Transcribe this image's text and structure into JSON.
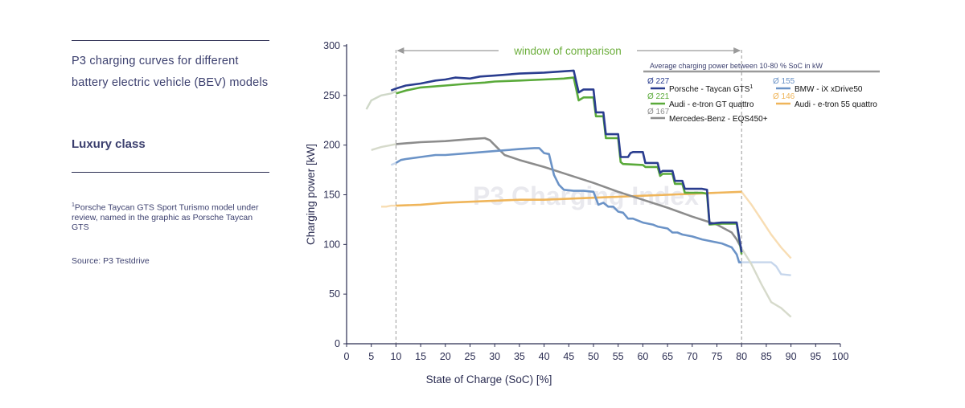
{
  "sidebar": {
    "intro": "P3 charging curves for different battery electric vehicle (BEV) models",
    "class_label": "Luxury class",
    "footnote_mark": "1",
    "footnote": "Porsche Taycan GTS Sport Turismo model under review, named in the graphic as Porsche Taycan GTS",
    "source": "Source: P3 Testdrive"
  },
  "colors": {
    "text": "#3b3f6e",
    "axis": "#2b2d52",
    "window": "#6cae3c",
    "porsche": "#2a3d8f",
    "audi_gt": "#5aaa3a",
    "bmw": "#6b93c7",
    "audi55": "#efb55a",
    "merc": "#8c8c8c"
  },
  "chart_data": {
    "type": "line",
    "xlabel": "State of Charge (SoC) [%]",
    "ylabel": "Charging power [kW]",
    "xlim": [
      0,
      100
    ],
    "ylim": [
      0,
      300
    ],
    "xticks": [
      0,
      5,
      10,
      15,
      20,
      25,
      30,
      35,
      40,
      45,
      50,
      55,
      60,
      65,
      70,
      75,
      80,
      85,
      90,
      95,
      100
    ],
    "yticks": [
      0,
      50,
      100,
      150,
      200,
      250,
      300
    ],
    "window": {
      "label": "window of comparison",
      "from": 10,
      "to": 80
    },
    "watermark": "P3 Charging Index",
    "legend_title": "Average charging power between 10-80 % SoC in kW",
    "series": [
      {
        "name": "Porsche - Taycan GTS",
        "sup": "1",
        "avg": "Ø 227",
        "color_key": "porsche",
        "points": [
          [
            9,
            255
          ],
          [
            10,
            257
          ],
          [
            12,
            260
          ],
          [
            15,
            262
          ],
          [
            18,
            265
          ],
          [
            20,
            266
          ],
          [
            22,
            268
          ],
          [
            25,
            267
          ],
          [
            27,
            269
          ],
          [
            30,
            270
          ],
          [
            35,
            272
          ],
          [
            40,
            273
          ],
          [
            43,
            274
          ],
          [
            46,
            275
          ],
          [
            47,
            253
          ],
          [
            48,
            256
          ],
          [
            50,
            256
          ],
          [
            50.5,
            233
          ],
          [
            51,
            233
          ],
          [
            52,
            233
          ],
          [
            52.5,
            211
          ],
          [
            54,
            211
          ],
          [
            55,
            211
          ],
          [
            55.5,
            188
          ],
          [
            56,
            188
          ],
          [
            57,
            188
          ],
          [
            57.5,
            192
          ],
          [
            58,
            193
          ],
          [
            60,
            193
          ],
          [
            60.5,
            182
          ],
          [
            63,
            182
          ],
          [
            63.5,
            172
          ],
          [
            64,
            174
          ],
          [
            66,
            174
          ],
          [
            66.5,
            164
          ],
          [
            67,
            164
          ],
          [
            68,
            164
          ],
          [
            68.5,
            156
          ],
          [
            72,
            156
          ],
          [
            73,
            155
          ],
          [
            73.5,
            121
          ],
          [
            76,
            122
          ],
          [
            78,
            122
          ],
          [
            79,
            122
          ],
          [
            80,
            92
          ]
        ]
      },
      {
        "name": "Audi - e-tron GT quattro",
        "avg": "Ø 221",
        "color_key": "audi_gt",
        "points": [
          [
            10,
            252
          ],
          [
            12,
            255
          ],
          [
            15,
            258
          ],
          [
            20,
            260
          ],
          [
            25,
            262
          ],
          [
            28,
            263
          ],
          [
            30,
            264
          ],
          [
            35,
            265
          ],
          [
            40,
            266
          ],
          [
            44,
            267
          ],
          [
            46,
            268
          ],
          [
            47,
            245
          ],
          [
            48,
            248
          ],
          [
            50,
            248
          ],
          [
            50.5,
            229
          ],
          [
            52,
            229
          ],
          [
            52.5,
            207
          ],
          [
            55,
            207
          ],
          [
            55.5,
            183
          ],
          [
            56,
            181
          ],
          [
            60,
            180
          ],
          [
            60.5,
            178
          ],
          [
            63,
            178
          ],
          [
            63.5,
            169
          ],
          [
            64,
            171
          ],
          [
            66,
            171
          ],
          [
            66.5,
            161
          ],
          [
            68,
            161
          ],
          [
            68.5,
            152
          ],
          [
            72,
            152
          ],
          [
            73,
            151
          ],
          [
            73.5,
            120
          ],
          [
            76,
            121
          ],
          [
            78,
            121
          ],
          [
            79,
            121
          ],
          [
            80,
            90
          ]
        ]
      },
      {
        "name": "BMW - iX xDrive50",
        "avg": "Ø 155",
        "color_key": "bmw",
        "points": [
          [
            10,
            182
          ],
          [
            11,
            185
          ],
          [
            12,
            186
          ],
          [
            15,
            188
          ],
          [
            18,
            190
          ],
          [
            20,
            190
          ],
          [
            25,
            192
          ],
          [
            30,
            194
          ],
          [
            35,
            196
          ],
          [
            38,
            197
          ],
          [
            39,
            197
          ],
          [
            40,
            192
          ],
          [
            41,
            191
          ],
          [
            42,
            170
          ],
          [
            43,
            160
          ],
          [
            44,
            155
          ],
          [
            46,
            154
          ],
          [
            48,
            154
          ],
          [
            50,
            153
          ],
          [
            51,
            140
          ],
          [
            52,
            142
          ],
          [
            53,
            138
          ],
          [
            54,
            138
          ],
          [
            55,
            133
          ],
          [
            56,
            132
          ],
          [
            57,
            126
          ],
          [
            58,
            126
          ],
          [
            60,
            122
          ],
          [
            62,
            120
          ],
          [
            63,
            118
          ],
          [
            65,
            116
          ],
          [
            66,
            112
          ],
          [
            67,
            112
          ],
          [
            68,
            110
          ],
          [
            70,
            108
          ],
          [
            72,
            105
          ],
          [
            74,
            103
          ],
          [
            76,
            101
          ],
          [
            78,
            97
          ],
          [
            79,
            90
          ],
          [
            79.5,
            82
          ],
          [
            80,
            82
          ]
        ],
        "tail": [
          [
            80,
            82
          ],
          [
            82,
            82
          ],
          [
            84,
            82
          ],
          [
            86,
            82
          ],
          [
            87,
            78
          ],
          [
            88,
            70
          ],
          [
            90,
            69
          ]
        ]
      },
      {
        "name": "Audi - e-tron 55 quattro",
        "avg": "Ø 146",
        "color_key": "audi55",
        "points": [
          [
            10,
            139
          ],
          [
            15,
            140
          ],
          [
            20,
            142
          ],
          [
            25,
            143
          ],
          [
            30,
            144
          ],
          [
            35,
            145
          ],
          [
            40,
            145
          ],
          [
            45,
            146
          ],
          [
            50,
            147
          ],
          [
            55,
            148
          ],
          [
            60,
            149
          ],
          [
            65,
            150
          ],
          [
            70,
            151
          ],
          [
            75,
            152
          ],
          [
            80,
            153
          ]
        ],
        "tail": [
          [
            80,
            153
          ],
          [
            82,
            140
          ],
          [
            84,
            125
          ],
          [
            86,
            110
          ],
          [
            88,
            97
          ],
          [
            90,
            86
          ]
        ],
        "head": [
          [
            7,
            138
          ],
          [
            8,
            138
          ],
          [
            9,
            139
          ],
          [
            10,
            139
          ]
        ]
      },
      {
        "name": "Mercedes-Benz - EQS450+",
        "avg": "Ø 167",
        "color_key": "merc",
        "points": [
          [
            10,
            201
          ],
          [
            15,
            203
          ],
          [
            20,
            204
          ],
          [
            25,
            206
          ],
          [
            28,
            207
          ],
          [
            29,
            205
          ],
          [
            30,
            200
          ],
          [
            32,
            190
          ],
          [
            35,
            185
          ],
          [
            40,
            178
          ],
          [
            45,
            170
          ],
          [
            50,
            162
          ],
          [
            55,
            153
          ],
          [
            60,
            145
          ],
          [
            65,
            137
          ],
          [
            70,
            128
          ],
          [
            75,
            120
          ],
          [
            78,
            112
          ],
          [
            79,
            105
          ],
          [
            80,
            96
          ]
        ],
        "tail": [
          [
            80,
            96
          ],
          [
            82,
            80
          ],
          [
            84,
            60
          ],
          [
            86,
            42
          ],
          [
            88,
            36
          ],
          [
            90,
            27
          ]
        ],
        "head": [
          [
            5,
            195
          ],
          [
            7,
            198
          ],
          [
            9,
            200
          ],
          [
            10,
            201
          ]
        ]
      }
    ],
    "extra_heads": [
      {
        "color_key": "porsche_light",
        "points": [
          [
            4,
            236
          ],
          [
            5,
            245
          ],
          [
            7,
            250
          ],
          [
            9,
            252
          ],
          [
            10,
            254
          ]
        ]
      },
      {
        "color_key": "bmw_light",
        "points": [
          [
            9,
            180
          ],
          [
            10,
            182
          ]
        ]
      }
    ]
  }
}
